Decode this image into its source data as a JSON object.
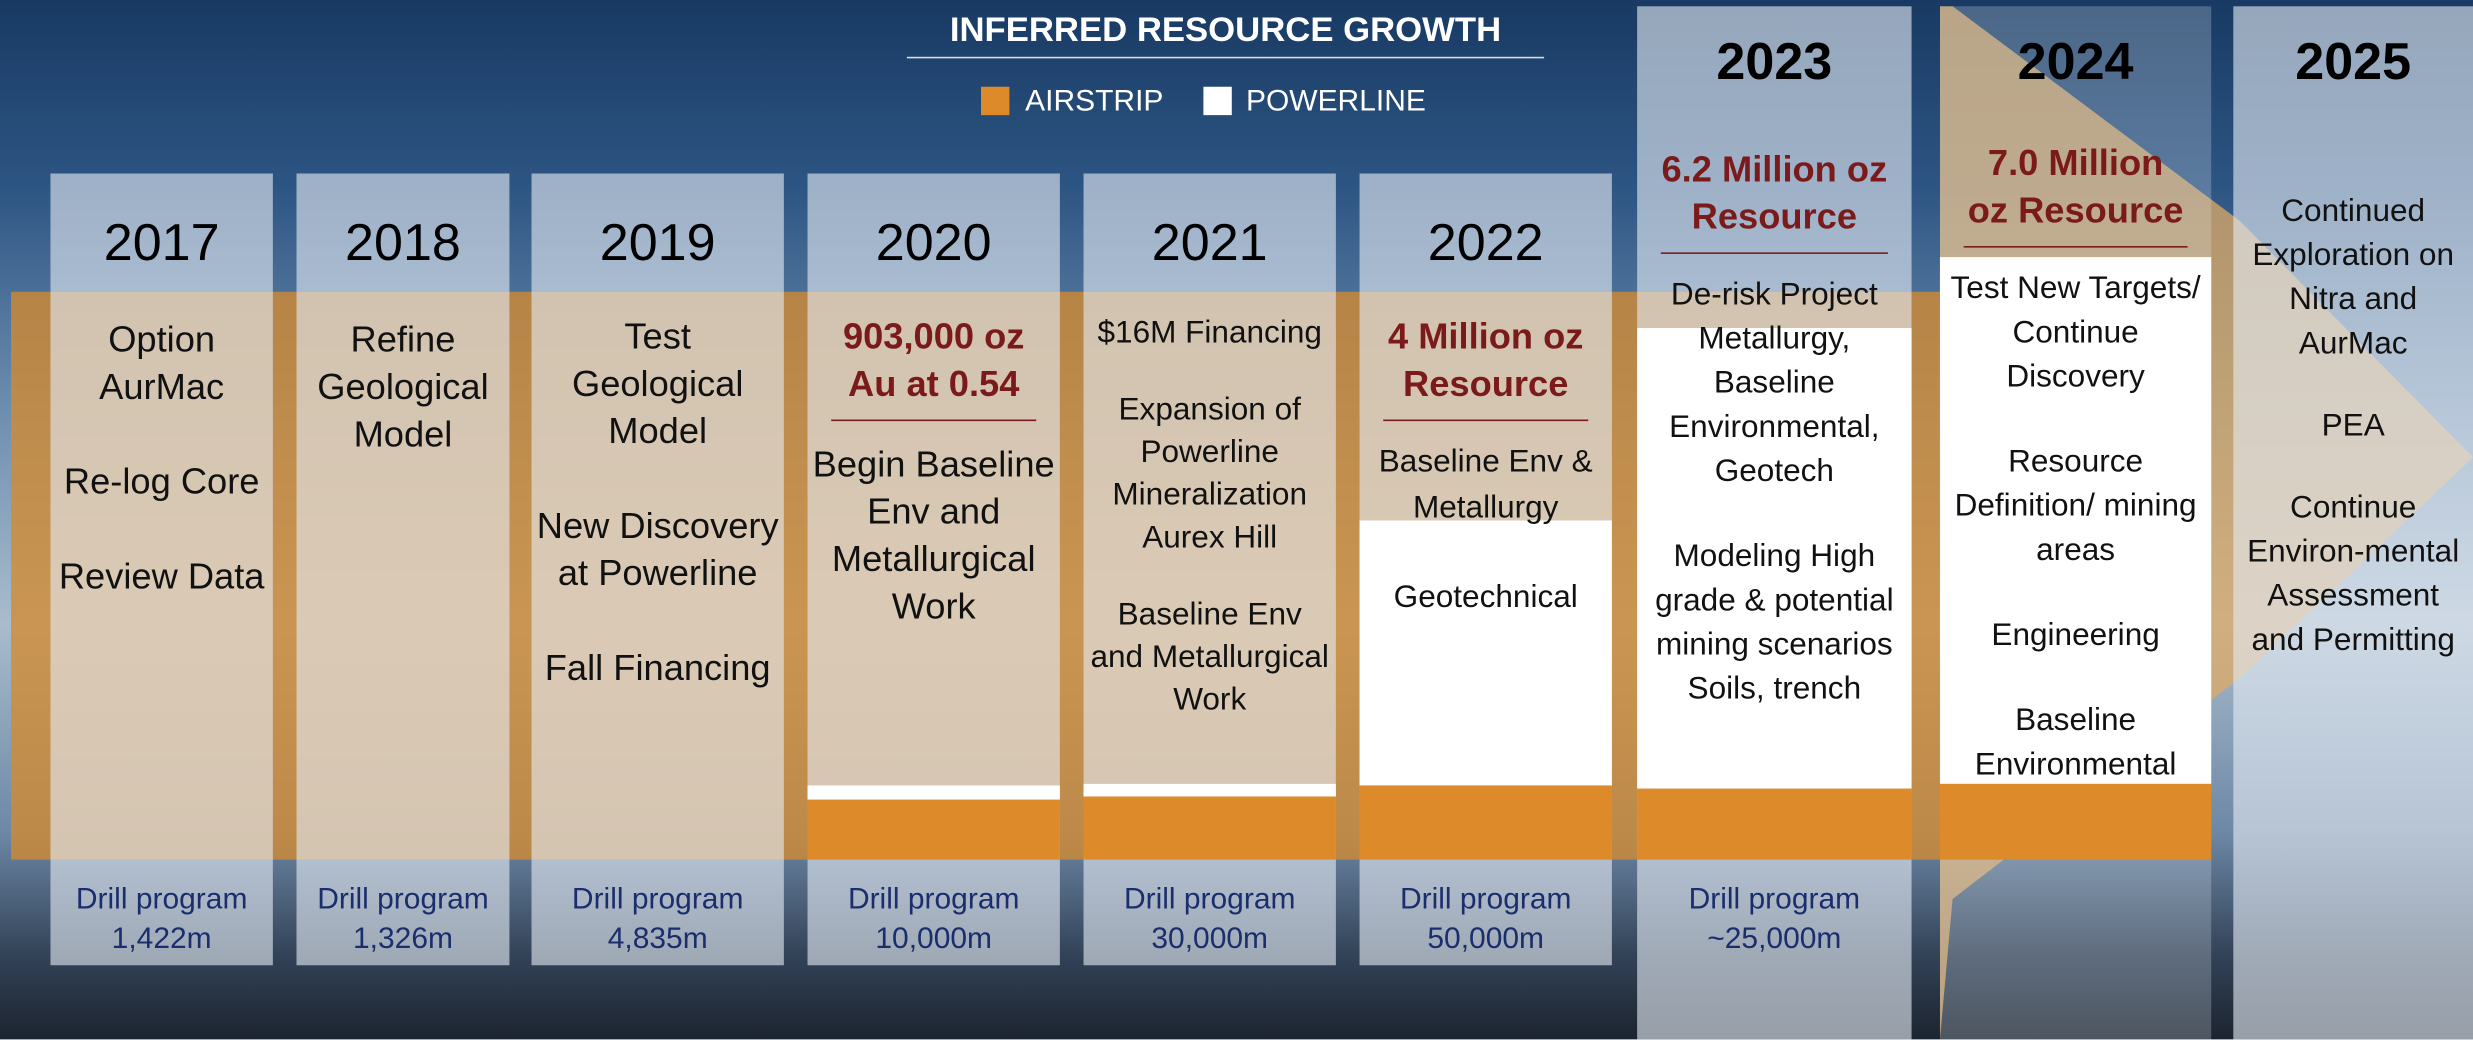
{
  "title": "INFERRED RESOURCE GROWTH",
  "legend": [
    "AIRSTRIP",
    "POWERLINE"
  ],
  "columns": [
    {
      "year": "2017",
      "items": [
        "Option AurMac",
        "Re-log Core",
        "Review Data"
      ],
      "drill": [
        "Drill program",
        "1,422m"
      ]
    },
    {
      "year": "2018",
      "items": [
        "Refine Geological Model"
      ],
      "drill": [
        "Drill program",
        "1,326m"
      ]
    },
    {
      "year": "2019",
      "items": [
        "Test Geological Model",
        "New Discovery at Powerline",
        "Fall Financing"
      ],
      "drill": [
        "Drill program",
        "4,835m"
      ]
    },
    {
      "year": "2020",
      "highlight": "903,000 oz Au at 0.54",
      "items": [
        "Begin Baseline Env and Metallurgical Work"
      ],
      "drill": [
        "Drill program",
        "10,000m"
      ]
    },
    {
      "year": "2021",
      "items": [
        "$16M Financing",
        "Expansion of Powerline Mineralization Aurex Hill",
        "Baseline Env and Metallurgical Work"
      ],
      "drill": [
        "Drill program",
        "30,000m"
      ]
    },
    {
      "year": "2022",
      "highlight": "4 Million oz Resource",
      "items": [
        "Baseline Env & Metallurgy",
        "Geotechnical"
      ],
      "drill": [
        "Drill program",
        "50,000m"
      ]
    },
    {
      "year": "2023",
      "highlight": "6.2 Million oz Resource",
      "items": [
        "De-risk Project",
        "Metallurgy, Baseline Environmental, Geotech",
        "Modeling High grade & potential mining scenarios Soils, trench"
      ],
      "drill": [
        "Drill program",
        "~25,000m"
      ]
    },
    {
      "year": "2024",
      "highlight": "7.0 Million oz Resource",
      "items": [
        "Test New Targets/ Continue Discovery",
        "Resource Definition/ mining areas",
        "Engineering",
        "Baseline Environmental"
      ]
    },
    {
      "year": "2025",
      "items": [
        "Continued Exploration on Nitra and AurMac",
        "PEA",
        "Continue Environ-mental Assessment and Permitting"
      ]
    }
  ]
}
